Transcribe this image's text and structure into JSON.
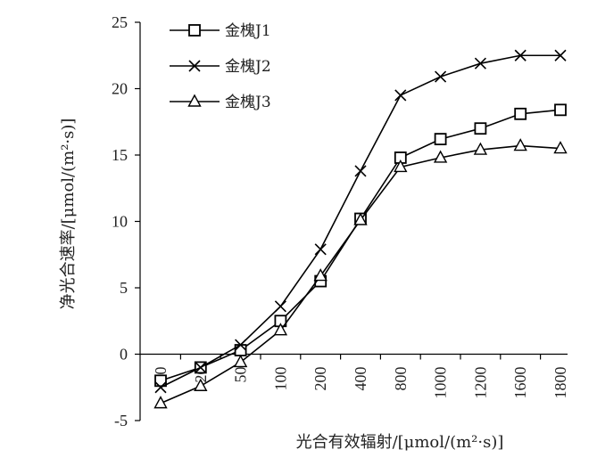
{
  "chart_data": {
    "type": "line",
    "title": "",
    "xlabel": "光合有效辐射/[μmol/(m²·s)]",
    "ylabel": "净光合速率/[μmol/(m²·s)]",
    "categories": [
      "0",
      "20",
      "50",
      "100",
      "200",
      "400",
      "800",
      "1000",
      "1200",
      "1600",
      "1800"
    ],
    "ylim": [
      -5,
      25
    ],
    "yticks": [
      -5,
      0,
      5,
      10,
      15,
      20,
      25
    ],
    "legend_position": "top-left",
    "grid": false,
    "series": [
      {
        "name": "金槐J1",
        "marker": "square",
        "values": [
          -2.0,
          -1.0,
          0.3,
          2.5,
          5.5,
          10.2,
          14.8,
          16.2,
          17.0,
          18.1,
          18.4
        ]
      },
      {
        "name": "金槐J2",
        "marker": "x",
        "values": [
          -2.5,
          -1.0,
          0.7,
          3.6,
          7.9,
          13.8,
          19.5,
          20.9,
          21.9,
          22.5,
          22.5
        ]
      },
      {
        "name": "金槐J3",
        "marker": "triangle",
        "values": [
          -3.7,
          -2.4,
          -0.6,
          1.8,
          5.9,
          10.1,
          14.1,
          14.8,
          15.4,
          15.7,
          15.5
        ]
      }
    ]
  }
}
